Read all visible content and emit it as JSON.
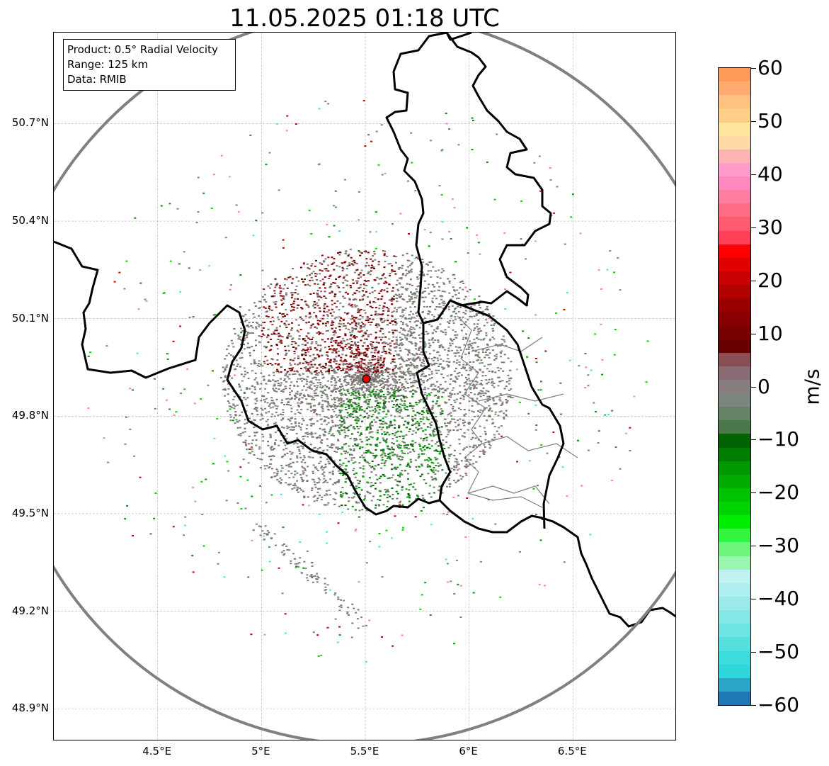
{
  "title": "11.05.2025 01:18 UTC",
  "info": {
    "product": "Product: 0.5° Radial Velocity",
    "range": "Range: 125 km",
    "data": "Data: RMIB"
  },
  "map": {
    "lon_range": [
      4.0,
      7.0
    ],
    "lat_range": [
      48.8,
      50.98
    ],
    "radar_site": {
      "lon": 5.505,
      "lat": 49.915
    },
    "range_km": 125,
    "lat_ticks": [
      "50.7°N",
      "50.4°N",
      "50.1°N",
      "49.8°N",
      "49.5°N",
      "49.2°N",
      "48.9°N"
    ],
    "lon_ticks": [
      "4.5°E",
      "5°E",
      "5.5°E",
      "6°E",
      "6.5°E"
    ],
    "lat_tick_values": [
      50.7,
      50.4,
      50.1,
      49.8,
      49.5,
      49.2,
      48.9
    ],
    "lon_tick_values": [
      4.5,
      5.0,
      5.5,
      6.0,
      6.5
    ],
    "grid": true,
    "colors": {
      "range_ring": "#808080",
      "borders": "#000000",
      "internal_borders": "#808080",
      "radar_marker": "#e00000"
    }
  },
  "colorbar": {
    "unit": "m/s",
    "min": -60,
    "max": 60,
    "tick_labels": [
      "60",
      "50",
      "40",
      "30",
      "20",
      "10",
      "0",
      "−10",
      "−20",
      "−30",
      "−40",
      "−50",
      "−60"
    ],
    "tick_values": [
      60,
      50,
      40,
      30,
      20,
      10,
      0,
      -10,
      -20,
      -30,
      -40,
      -50,
      -60
    ],
    "colors": [
      "#1f78b4",
      "#2aa5c8",
      "#2ed7da",
      "#3cdcdc",
      "#55e0e0",
      "#6ee4e4",
      "#85e6e6",
      "#9aeaea",
      "#afeef0",
      "#c0f2f2",
      "#9af5b0",
      "#6cf57a",
      "#33f43e",
      "#00ee00",
      "#00d400",
      "#00c300",
      "#00ac00",
      "#009700",
      "#007c00",
      "#006200",
      "#4a7a4a",
      "#648264",
      "#7d867e",
      "#8a7d80",
      "#8a6a72",
      "#8a4d54",
      "#6a0000",
      "#7a0000",
      "#8a0000",
      "#9a0000",
      "#b00000",
      "#c80000",
      "#e00000",
      "#ff0000",
      "#ff4055",
      "#ff5a70",
      "#ff6e85",
      "#ff7da0",
      "#ff88c0",
      "#ff9ccc",
      "#ffb4b4",
      "#ffd9a6",
      "#ffe89e",
      "#ffcf88",
      "#ffc080",
      "#ffaa70",
      "#ff9a5a"
    ]
  }
}
